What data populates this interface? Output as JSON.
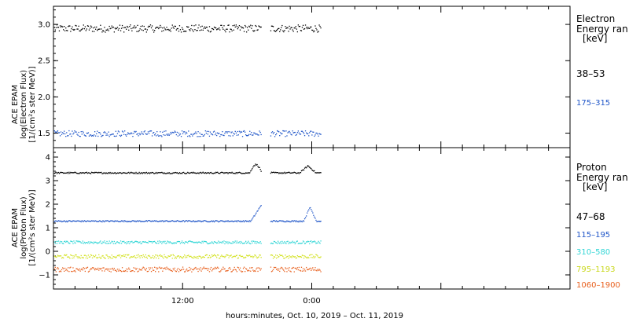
{
  "chart_data": [
    {
      "type": "scatter",
      "panel": "electron",
      "ylabel": [
        "ACE EPAM",
        "log(Electron Flux)",
        "[1/(cm²s ster MeV)]"
      ],
      "ylim": [
        1.3,
        3.25
      ],
      "yticks": [
        1.5,
        2.0,
        2.5,
        3.0
      ],
      "ytick_labels": [
        "1.5",
        "2.0",
        "2.5",
        "3.0"
      ],
      "legend": {
        "title": [
          "Electron",
          "Energy ran",
          "[keV]"
        ],
        "placement": "right"
      },
      "series": [
        {
          "name": "38–53",
          "color": "#000000",
          "base": 2.95,
          "amp": 0.05
        },
        {
          "name": "175–315",
          "color": "#1f55c8",
          "base": 1.5,
          "amp": 0.04
        }
      ]
    },
    {
      "type": "scatter",
      "panel": "proton",
      "ylabel": [
        "ACE EPAM",
        "log(Proton Flux)",
        "[1/(cm²s ster MeV)]"
      ],
      "ylim": [
        -1.6,
        4.4
      ],
      "yticks": [
        -1,
        0,
        1,
        2,
        3,
        4
      ],
      "ytick_labels": [
        "−1",
        "0",
        "1",
        "2",
        "3",
        "4"
      ],
      "legend": {
        "title": [
          "Proton",
          "Energy ran",
          "[keV]"
        ],
        "placement": "right"
      },
      "series": [
        {
          "name": "47–68",
          "color": "#000000",
          "base": 3.35,
          "amp": 0.03
        },
        {
          "name": "115–195",
          "color": "#1f55c8",
          "base": 1.3,
          "amp": 0.03
        },
        {
          "name": "310–580",
          "color": "#33d6d6",
          "base": 0.4,
          "amp": 0.06
        },
        {
          "name": "795–1193",
          "color": "#d2e21e",
          "base": -0.2,
          "amp": 0.08
        },
        {
          "name": "1060–1900",
          "color": "#e8601e",
          "base": -0.75,
          "amp": 0.1
        }
      ]
    }
  ],
  "x_axis": {
    "xlabel": "hours:minutes, Oct. 10, 2019 – Oct. 11, 2019",
    "range_hours": [
      0,
      48
    ],
    "ticks": [
      12,
      24
    ],
    "tick_labels": [
      "12:00",
      "0:00"
    ],
    "data_end_hour": 24.83,
    "gap_hours": [
      19.3,
      20.1
    ]
  }
}
